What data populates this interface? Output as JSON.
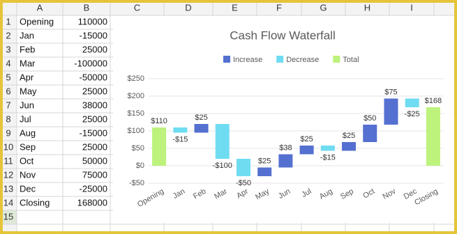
{
  "sheet": {
    "columns": [
      "A",
      "B",
      "C",
      "D",
      "E",
      "F",
      "G",
      "H",
      "I"
    ],
    "rows": [
      {
        "number": 1,
        "cells": [
          "Opening",
          110000
        ]
      },
      {
        "number": 2,
        "cells": [
          "Jan",
          -15000
        ]
      },
      {
        "number": 3,
        "cells": [
          "Feb",
          25000
        ]
      },
      {
        "number": 4,
        "cells": [
          "Mar",
          -100000
        ]
      },
      {
        "number": 5,
        "cells": [
          "Apr",
          -50000
        ]
      },
      {
        "number": 6,
        "cells": [
          "May",
          25000
        ]
      },
      {
        "number": 7,
        "cells": [
          "Jun",
          38000
        ]
      },
      {
        "number": 8,
        "cells": [
          "Jul",
          25000
        ]
      },
      {
        "number": 9,
        "cells": [
          "Aug",
          -15000
        ]
      },
      {
        "number": 10,
        "cells": [
          "Sep",
          25000
        ]
      },
      {
        "number": 11,
        "cells": [
          "Oct",
          50000
        ]
      },
      {
        "number": 12,
        "cells": [
          "Nov",
          75000
        ]
      },
      {
        "number": 13,
        "cells": [
          "Dec",
          -25000
        ]
      },
      {
        "number": 14,
        "cells": [
          "Closing",
          168000
        ]
      },
      {
        "number": 15,
        "cells": []
      }
    ]
  },
  "chart_data": {
    "type": "waterfall",
    "title": "Cash Flow Waterfall",
    "categories": [
      "Opening",
      "Jan",
      "Feb",
      "Mar",
      "Apr",
      "May",
      "Jun",
      "Jul",
      "Aug",
      "Sep",
      "Oct",
      "Nov",
      "Dec",
      "Closing"
    ],
    "series": [
      {
        "name": "Increase",
        "color": "#5470d0",
        "values": [
          null,
          null,
          25,
          null,
          null,
          25,
          38,
          25,
          null,
          25,
          50,
          75,
          null,
          null
        ],
        "value_labels": [
          null,
          null,
          "$25",
          null,
          null,
          "$25",
          "$38",
          "$25",
          null,
          "$25",
          "$50",
          "$75",
          null,
          null
        ]
      },
      {
        "name": "Decrease",
        "color": "#6fdcf2",
        "values": [
          null,
          -15,
          null,
          -100,
          -50,
          null,
          null,
          null,
          -15,
          null,
          null,
          null,
          -25,
          null
        ],
        "value_labels": [
          null,
          "-$15",
          null,
          "-$100",
          "-$50",
          null,
          null,
          null,
          "-$15",
          null,
          null,
          null,
          "-$25",
          null
        ]
      },
      {
        "name": "Total",
        "color": "#bdf27c",
        "total": true,
        "values": [
          110,
          null,
          null,
          null,
          null,
          null,
          null,
          null,
          null,
          null,
          null,
          null,
          null,
          168
        ],
        "value_labels": [
          "$110",
          null,
          null,
          null,
          null,
          null,
          null,
          null,
          null,
          null,
          null,
          null,
          null,
          "$168"
        ]
      }
    ],
    "ylim": [
      -50,
      250
    ],
    "yticks": [
      {
        "value": -50,
        "label": "-$50"
      },
      {
        "value": 0,
        "label": "$0"
      },
      {
        "value": 50,
        "label": "$50"
      },
      {
        "value": 100,
        "label": "$100"
      },
      {
        "value": 150,
        "label": "$150"
      },
      {
        "value": 200,
        "label": "$200"
      },
      {
        "value": 250,
        "label": "$250"
      }
    ],
    "grid": true,
    "legend": "top"
  }
}
